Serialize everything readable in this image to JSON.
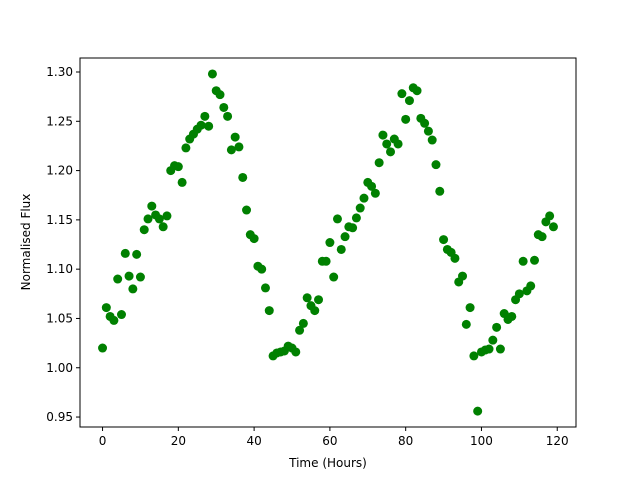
{
  "chart_data": {
    "type": "scatter",
    "xlabel": "Time (Hours)",
    "ylabel": "Normalised Flux",
    "color": "#008000",
    "x": [
      0,
      1,
      2,
      3,
      4,
      5,
      6,
      7,
      8,
      9,
      10,
      11,
      12,
      13,
      14,
      15,
      16,
      17,
      18,
      19,
      20,
      21,
      22,
      23,
      24,
      25,
      26,
      27,
      28,
      29,
      30,
      31,
      32,
      33,
      34,
      35,
      36,
      37,
      38,
      39,
      40,
      41,
      42,
      43,
      44,
      45,
      46,
      47,
      48,
      49,
      50,
      51,
      52,
      53,
      54,
      55,
      56,
      57,
      58,
      59,
      60,
      61,
      62,
      63,
      64,
      65,
      66,
      67,
      68,
      69,
      70,
      71,
      72,
      73,
      74,
      75,
      76,
      77,
      78,
      79,
      80,
      81,
      82,
      83,
      84,
      85,
      86,
      87,
      88,
      89,
      90,
      91,
      92,
      93,
      94,
      95,
      96,
      97,
      98,
      99,
      100,
      101,
      102,
      103,
      104,
      105,
      106,
      107,
      108,
      109,
      110,
      111,
      112,
      113,
      114,
      115,
      116,
      117,
      118,
      119
    ],
    "values": [
      1.02,
      1.061,
      1.052,
      1.048,
      1.09,
      1.054,
      1.116,
      1.093,
      1.08,
      1.115,
      1.092,
      1.14,
      1.151,
      1.164,
      1.155,
      1.151,
      1.143,
      1.154,
      1.2,
      1.205,
      1.204,
      1.188,
      1.223,
      1.232,
      1.237,
      1.242,
      1.246,
      1.255,
      1.245,
      1.298,
      1.281,
      1.277,
      1.264,
      1.255,
      1.221,
      1.234,
      1.224,
      1.193,
      1.16,
      1.135,
      1.131,
      1.103,
      1.1,
      1.081,
      1.058,
      1.012,
      1.015,
      1.016,
      1.017,
      1.022,
      1.02,
      1.016,
      1.038,
      1.045,
      1.071,
      1.063,
      1.058,
      1.069,
      1.108,
      1.108,
      1.127,
      1.092,
      1.151,
      1.12,
      1.133,
      1.143,
      1.142,
      1.152,
      1.162,
      1.172,
      1.188,
      1.184,
      1.177,
      1.208,
      1.236,
      1.227,
      1.219,
      1.232,
      1.227,
      1.278,
      1.252,
      1.271,
      1.284,
      1.281,
      1.253,
      1.248,
      1.24,
      1.231,
      1.206,
      1.179,
      1.13,
      1.12,
      1.117,
      1.111,
      1.087,
      1.093,
      1.044,
      1.061,
      1.012,
      0.956,
      1.016,
      1.018,
      1.019,
      1.028,
      1.041,
      1.019,
      1.055,
      1.049,
      1.052,
      1.069,
      1.075,
      1.108,
      1.078,
      1.083,
      1.109,
      1.135,
      1.133,
      1.148,
      1.154,
      1.143
    ],
    "xlim": [
      -5.95,
      124.95
    ],
    "ylim": [
      0.9399,
      1.3142
    ],
    "xticks": [
      0,
      20,
      40,
      60,
      80,
      100,
      120
    ],
    "yticks": [
      0.95,
      {
        "value": 1.0,
        "label": "1.00"
      },
      1.05,
      {
        "value": 1.1,
        "label": "1.10"
      },
      1.15,
      {
        "value": 1.2,
        "label": "1.20"
      },
      1.25,
      {
        "value": 1.3,
        "label": "1.30"
      }
    ]
  }
}
